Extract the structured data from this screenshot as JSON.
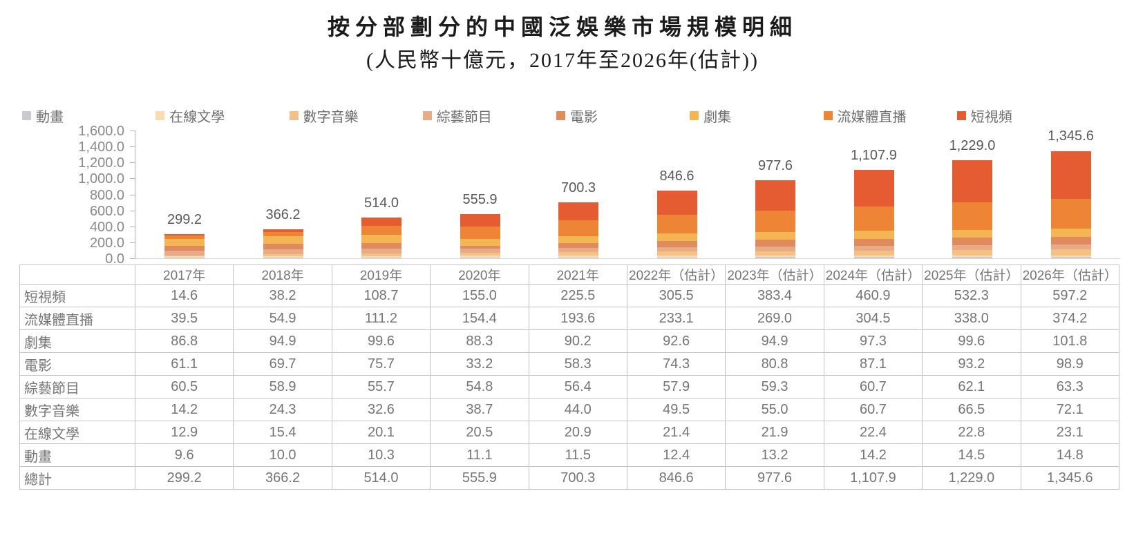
{
  "chart_data": {
    "type": "bar",
    "stacked": true,
    "title": "按分部劃分的中國泛娛樂市場規模明細",
    "subtitle": "(人民幣十億元，2017年至2026年(估計))",
    "legend_position": "top",
    "grid": false,
    "ylim": [
      0,
      1600
    ],
    "y_ticks": [
      "0.0",
      "200.0",
      "400.0",
      "600.0",
      "800.0",
      "1,000.0",
      "1,200.0",
      "1,400.0",
      "1,600.0"
    ],
    "categories": [
      "2017年",
      "2018年",
      "2019年",
      "2020年",
      "2021年",
      "2022年（估計）",
      "2023年（估計）",
      "2024年（估計）",
      "2025年（估計）",
      "2026年（估計）"
    ],
    "series": [
      {
        "name": "動畫",
        "color": "#c9c9ce",
        "values": [
          "9.6",
          "10.0",
          "10.3",
          "11.1",
          "11.5",
          "12.4",
          "13.2",
          "14.2",
          "14.5",
          "14.8"
        ]
      },
      {
        "name": "在線文學",
        "color": "#fbdcb2",
        "values": [
          "12.9",
          "15.4",
          "20.1",
          "20.5",
          "20.9",
          "21.4",
          "21.9",
          "22.4",
          "22.8",
          "23.1"
        ]
      },
      {
        "name": "數字音樂",
        "color": "#f4c083",
        "values": [
          "14.2",
          "24.3",
          "32.6",
          "38.7",
          "44.0",
          "49.5",
          "55.0",
          "60.7",
          "66.5",
          "72.1"
        ]
      },
      {
        "name": "綜藝節目",
        "color": "#e8ab88",
        "values": [
          "60.5",
          "58.9",
          "55.7",
          "54.8",
          "56.4",
          "57.9",
          "59.3",
          "60.7",
          "62.1",
          "63.3"
        ]
      },
      {
        "name": "電影",
        "color": "#e08a5e",
        "values": [
          "61.1",
          "69.7",
          "75.7",
          "33.2",
          "58.3",
          "74.3",
          "80.8",
          "87.1",
          "93.2",
          "98.9"
        ]
      },
      {
        "name": "劇集",
        "color": "#f3b652",
        "values": [
          "86.8",
          "94.9",
          "99.6",
          "88.3",
          "90.2",
          "92.6",
          "94.9",
          "97.3",
          "99.6",
          "101.8"
        ]
      },
      {
        "name": "流媒體直播",
        "color": "#ee8435",
        "values": [
          "39.5",
          "54.9",
          "111.2",
          "154.4",
          "193.6",
          "233.1",
          "269.0",
          "304.5",
          "338.0",
          "374.2"
        ]
      },
      {
        "name": "短視頻",
        "color": "#e55c33",
        "values": [
          "14.6",
          "38.2",
          "108.7",
          "155.0",
          "225.5",
          "305.5",
          "383.4",
          "460.9",
          "532.3",
          "597.2"
        ]
      }
    ],
    "totals": [
      "299.2",
      "366.2",
      "514.0",
      "555.9",
      "700.3",
      "846.6",
      "977.6",
      "1,107.9",
      "1,229.0",
      "1,345.6"
    ]
  },
  "table": {
    "row_order": [
      "短視頻",
      "流媒體直播",
      "劇集",
      "電影",
      "綜藝節目",
      "數字音樂",
      "在線文學",
      "動畫"
    ],
    "total_label": "總計"
  }
}
